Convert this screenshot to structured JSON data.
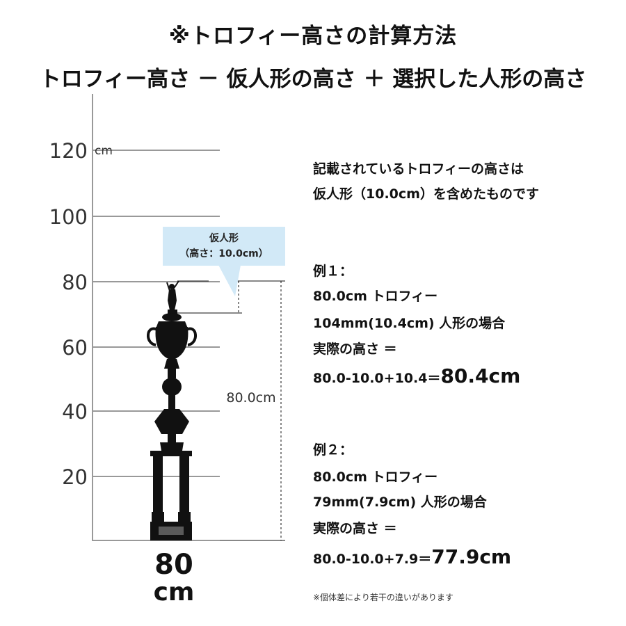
{
  "header": {
    "title": "※トロフィー高さの計算方法",
    "formula": "トロフィー高さ － 仮人形の高さ ＋ 選択した人形の高さ"
  },
  "scale": {
    "ticks": [
      "120",
      "100",
      "80",
      "60",
      "40",
      "20"
    ],
    "unit": "cm"
  },
  "callout": {
    "line1": "仮人形",
    "line2": "（高さ：10.0cm）"
  },
  "dimension_label": "80.0cm",
  "trophy_size": {
    "value": "80",
    "unit": "cm"
  },
  "description": {
    "line1": "記載されているトロフィーの高さは",
    "line2": "仮人形（10.0cm）を含めたものです"
  },
  "example1": {
    "title": "例１：",
    "trophy": "80.0cm トロフィー",
    "figure": "104mm(10.4cm) 人形の場合",
    "actual_label": "実際の高さ ＝",
    "calc": "80.0-10.0+10.4＝",
    "result": "80.4cm"
  },
  "example2": {
    "title": "例２：",
    "trophy": "80.0cm トロフィー",
    "figure": "79mm(7.9cm) 人形の場合",
    "actual_label": "実際の高さ ＝",
    "calc": "80.0-10.0+7.9＝",
    "result": "77.9cm"
  },
  "note": "※個体差により若干の違いがあります",
  "colors": {
    "callout_bg": "#d2e9f7",
    "trophy": "#111111",
    "gridline": "#999999"
  }
}
